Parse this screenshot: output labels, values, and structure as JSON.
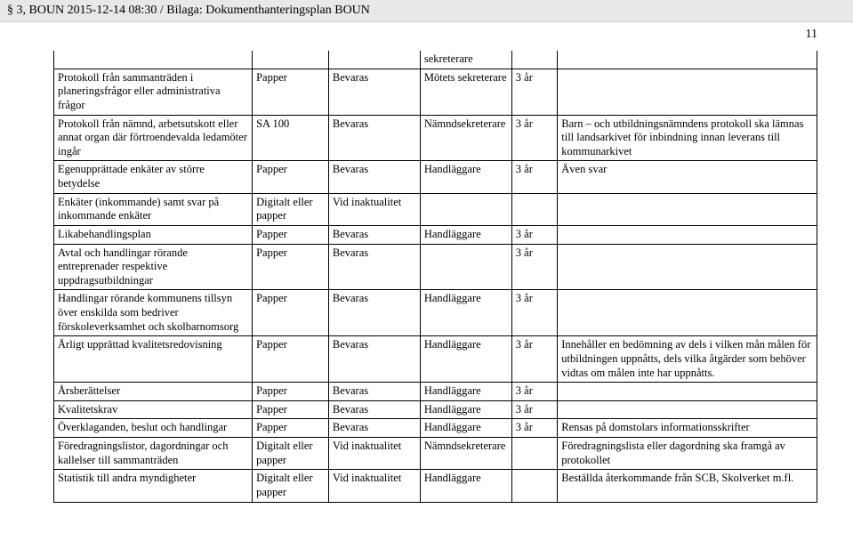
{
  "header": "§ 3, BOUN 2015-12-14 08:30 / Bilaga: Dokumenthanteringsplan BOUN",
  "page_number": "11",
  "pre_row": [
    "",
    "",
    "",
    "sekreterare",
    "",
    ""
  ],
  "rows": [
    [
      "Protokoll från sammanträden i planeringsfrågor eller administrativa frågor",
      "Papper",
      "Bevaras",
      "Mötets sekreterare",
      "3 år",
      ""
    ],
    [
      "Protokoll från nämnd, arbetsutskott eller annat organ där förtroendevalda ledamöter ingår",
      "SA 100",
      "Bevaras",
      "Nämndsekreterare",
      "3 år",
      "Barn – och utbildningsnämndens protokoll ska lämnas till landsarkivet för inbindning innan leverans till kommunarkivet"
    ],
    [
      "Egenupprättade enkäter av större betydelse",
      "Papper",
      "Bevaras",
      "Handläggare",
      "3 år",
      "Även svar"
    ],
    [
      "Enkäter (inkommande) samt svar på inkommande enkäter",
      "Digitalt eller papper",
      "Vid inaktualitet",
      "",
      "",
      ""
    ],
    [
      "Likabehandlingsplan",
      "Papper",
      "Bevaras",
      "Handläggare",
      "3 år",
      ""
    ],
    [
      "Avtal och handlingar rörande entreprenader respektive uppdragsutbildningar",
      "Papper",
      "Bevaras",
      "",
      "3 år",
      ""
    ],
    [
      "Handlingar rörande kommunens tillsyn över enskilda som bedriver förskoleverksamhet och skolbarnomsorg",
      "Papper",
      "Bevaras",
      "Handläggare",
      "3 år",
      ""
    ],
    [
      "Årligt upprättad kvalitetsredovisning",
      "Papper",
      "Bevaras",
      "Handläggare",
      "3 år",
      "Innehåller en bedömning av dels i vilken mån målen för utbildningen uppnåtts, dels vilka åtgärder som behöver vidtas om målen inte har uppnåtts."
    ],
    [
      "Årsberättelser",
      "Papper",
      "Bevaras",
      "Handläggare",
      "3 år",
      ""
    ],
    [
      "Kvalitetskrav",
      "Papper",
      "Bevaras",
      "Handläggare",
      "3 år",
      ""
    ],
    [
      "Överklaganden, beslut och handlingar",
      "Papper",
      "Bevaras",
      "Handläggare",
      "3 år",
      "Rensas på domstolars informationsskrifter"
    ],
    [
      "Föredragningslistor, dagordningar och kallelser till sammanträden",
      "Digitalt eller papper",
      "Vid inaktualitet",
      "Nämndsekreterare",
      "",
      "Föredragningslista eller dagordning ska framgå av protokollet"
    ],
    [
      "Statistik till andra myndigheter",
      "Digitalt eller papper",
      "Vid inaktualitet",
      "Handläggare",
      "",
      "Beställda återkommande från SCB, Skolverket m.fl."
    ]
  ]
}
